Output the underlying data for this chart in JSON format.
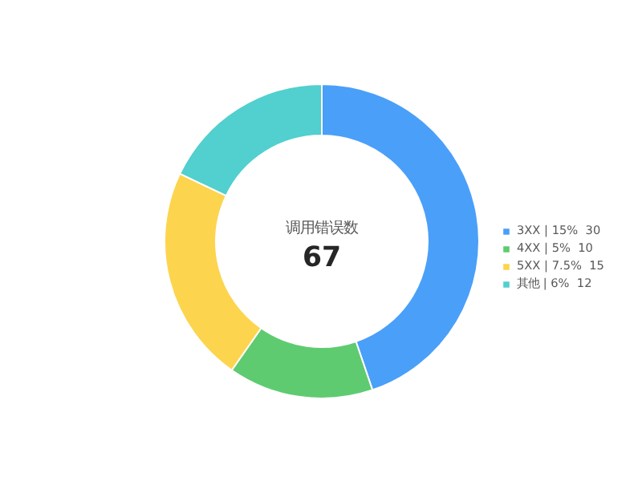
{
  "chart_data": {
    "type": "donut",
    "title": "调用错误数",
    "categories": [
      "3XX | 15%  30",
      "4XX | 5%  10",
      "5XX | 7.5%  15",
      "其他 | 6%  12"
    ],
    "values": [
      30,
      10,
      15,
      12
    ],
    "colors": [
      "#4a9ff9",
      "#5fcb71",
      "#fdd44d",
      "#52cfcf"
    ],
    "annotations": [
      "67"
    ],
    "legend": "right"
  }
}
